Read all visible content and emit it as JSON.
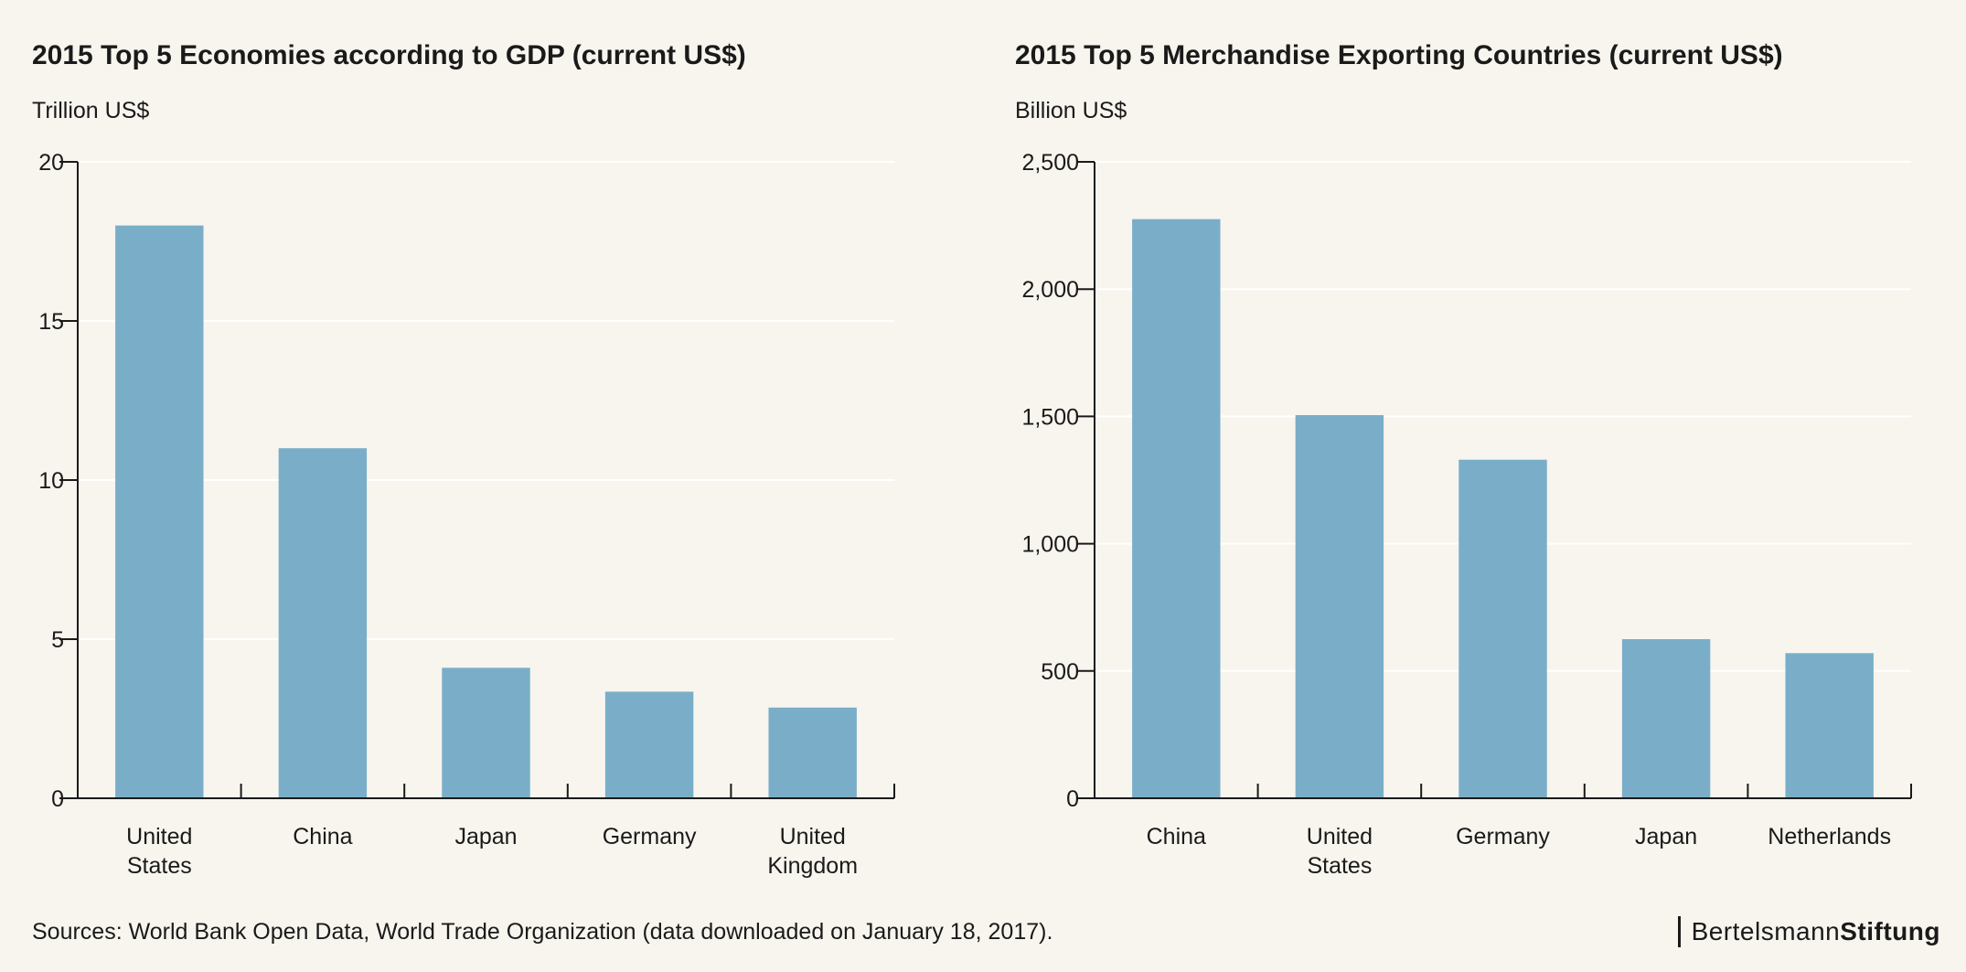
{
  "chart_data": [
    {
      "type": "bar",
      "title": "2015 Top 5 Economies according to GDP (current US$)",
      "unit_label": "Trillion US$",
      "categories": [
        [
          "United",
          "States"
        ],
        [
          "China"
        ],
        [
          "Japan"
        ],
        [
          "Germany"
        ],
        [
          "United",
          "Kingdom"
        ]
      ],
      "values": [
        18.0,
        11.0,
        4.1,
        3.35,
        2.85
      ],
      "ylim": [
        0,
        20
      ],
      "yticks": [
        0,
        5,
        10,
        15,
        20
      ],
      "ytick_labels": [
        "0",
        "5",
        "10",
        "15",
        "20"
      ],
      "grid": true,
      "bar_color": "#7aaec8"
    },
    {
      "type": "bar",
      "title": "2015 Top 5 Merchandise Exporting Countries (current US$)",
      "unit_label": "Billion US$",
      "categories": [
        [
          "China"
        ],
        [
          "United",
          "States"
        ],
        [
          "Germany"
        ],
        [
          "Japan"
        ],
        [
          "Netherlands"
        ]
      ],
      "values": [
        2275,
        1505,
        1330,
        625,
        570
      ],
      "ylim": [
        0,
        2500
      ],
      "yticks": [
        0,
        500,
        1000,
        1500,
        2000,
        2500
      ],
      "ytick_labels": [
        "0",
        "500",
        "1,000",
        "1,500",
        "2,000",
        "2,500"
      ],
      "grid": true,
      "bar_color": "#7aaec8"
    }
  ],
  "footer": {
    "source": "Sources: World Bank Open Data, World Trade Organization (data downloaded on January 18, 2017).",
    "brand_light": "Bertelsmann",
    "brand_bold": "Stiftung"
  }
}
